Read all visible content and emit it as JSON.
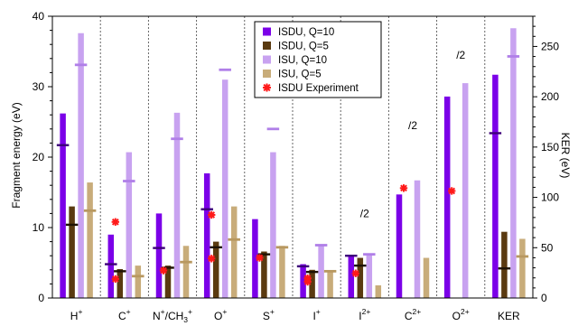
{
  "chart_data": {
    "type": "bar",
    "ylabel": "Fragment energy (eV)",
    "ylabel_right": "KER (eV)",
    "ylim": [
      0,
      40
    ],
    "ylim_right": [
      0,
      280
    ],
    "yticks": [
      0,
      10,
      20,
      30,
      40
    ],
    "yticks_right": [
      0,
      50,
      100,
      150,
      200,
      250
    ],
    "categories": [
      {
        "base": "H",
        "sup": "+"
      },
      {
        "base": "C",
        "sup": "+"
      },
      {
        "base": "N",
        "sup": "+",
        "extra": "/CH",
        "extra_sub": "3",
        "extra_sup": "+"
      },
      {
        "base": "O",
        "sup": "+"
      },
      {
        "base": "S",
        "sup": "+"
      },
      {
        "base": "I",
        "sup": "+"
      },
      {
        "base": "I",
        "sup": "2+"
      },
      {
        "base": "C",
        "sup": "2+"
      },
      {
        "base": "O",
        "sup": "2+"
      },
      {
        "base": "KER",
        "sup": ""
      }
    ],
    "series": [
      {
        "name": "ISDU, Q=10",
        "color": "#7b00e8",
        "values": [
          26.2,
          9.0,
          12.0,
          17.7,
          11.2,
          4.8,
          6.0,
          14.7,
          28.6,
          31.7
        ],
        "means": [
          21.7,
          4.8,
          7.1,
          12.6,
          null,
          4.5,
          6.0,
          null,
          null,
          23.4
        ]
      },
      {
        "name": "ISDU, Q=5",
        "color": "#5a3a10",
        "values": [
          13.0,
          4.1,
          4.6,
          8.0,
          6.6,
          4.0,
          5.7,
          null,
          null,
          9.4
        ],
        "means": [
          10.4,
          3.8,
          4.3,
          7.2,
          6.2,
          3.7,
          4.6,
          null,
          null,
          4.2
        ]
      },
      {
        "name": "ISU, Q=10",
        "color": "#c8a2f0",
        "values": [
          37.6,
          20.7,
          26.3,
          31.0,
          20.7,
          7.6,
          6.3,
          16.7,
          30.5,
          38.3
        ],
        "means": [
          33.1,
          16.6,
          22.6,
          32.4,
          24.0,
          7.5,
          6.2,
          null,
          null,
          34.3
        ]
      },
      {
        "name": "ISU, Q=5",
        "color": "#c8ac7a",
        "values": [
          16.4,
          4.6,
          7.4,
          13.0,
          7.4,
          3.8,
          1.8,
          5.7,
          null,
          8.4
        ],
        "means": [
          12.4,
          3.1,
          5.1,
          8.3,
          7.2,
          3.8,
          null,
          null,
          null,
          5.9
        ]
      }
    ],
    "experiment": {
      "name": "ISDU Experiment",
      "color": "#ff1a1a",
      "values": [
        null,
        [
          10.8,
          2.7
        ],
        [
          3.9
        ],
        [
          11.8,
          5.6
        ],
        [
          5.7
        ],
        [
          2.8,
          2.3
        ],
        [
          3.5
        ],
        [
          15.6
        ],
        [
          15.2
        ],
        null
      ]
    },
    "annotations": [
      {
        "text": "/2",
        "category_index": 6,
        "y": 12
      },
      {
        "text": "/2",
        "category_index": 7,
        "y": 24.5
      },
      {
        "text": "/2",
        "category_index": 8,
        "y": 34.5
      }
    ]
  }
}
